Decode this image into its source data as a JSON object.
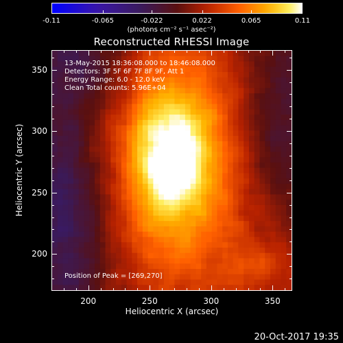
{
  "chart_data": {
    "type": "heatmap",
    "title": "Reconstructed RHESSI Image",
    "xlabel": "Heliocentric X (arcsec)",
    "ylabel": "Heliocentric Y (arcsec)",
    "xlim": [
      170,
      366
    ],
    "ylim": [
      170,
      366
    ],
    "x_ticks": [
      200,
      250,
      300,
      350
    ],
    "y_ticks": [
      200,
      250,
      300,
      350
    ],
    "colorbar": {
      "ticks": [
        "-0.11",
        "-0.065",
        "-0.022",
        "0.022",
        "0.065",
        "0.11"
      ],
      "units_label": "(photons cm^-2 s^-1 asec^-2)",
      "range": [
        -0.11,
        0.11
      ],
      "colormap": "hot-blue"
    },
    "peak": {
      "x": 269,
      "y": 270
    },
    "source": {
      "x_center": 268,
      "y_center": 282,
      "x_extent": 65,
      "y_extent": 110
    },
    "info_lines": [
      "13-May-2015 18:36:08.000 to 18:46:08.000",
      "Detectors: 3F 5F 6F 7F 8F 9F, Att 1",
      "Energy Range: 6.0 - 12.0 keV",
      "Clean    Total counts: 5.96E+04"
    ],
    "peak_label": "Position of Peak = [269,270]"
  },
  "colorbar_units_html": "(photons cm⁻² s⁻¹ asec⁻²)",
  "footer": {
    "timestamp": "20-Oct-2017 19:35"
  },
  "colors": {
    "background": "#000000",
    "foreground": "#ffffff",
    "cmap_negative": [
      "#0000ff",
      "#1a0080",
      "#3a1060"
    ],
    "cmap_positive": [
      "#8b1400",
      "#c83000",
      "#ff6a00",
      "#ffb000",
      "#ffff80",
      "#ffffff"
    ]
  }
}
